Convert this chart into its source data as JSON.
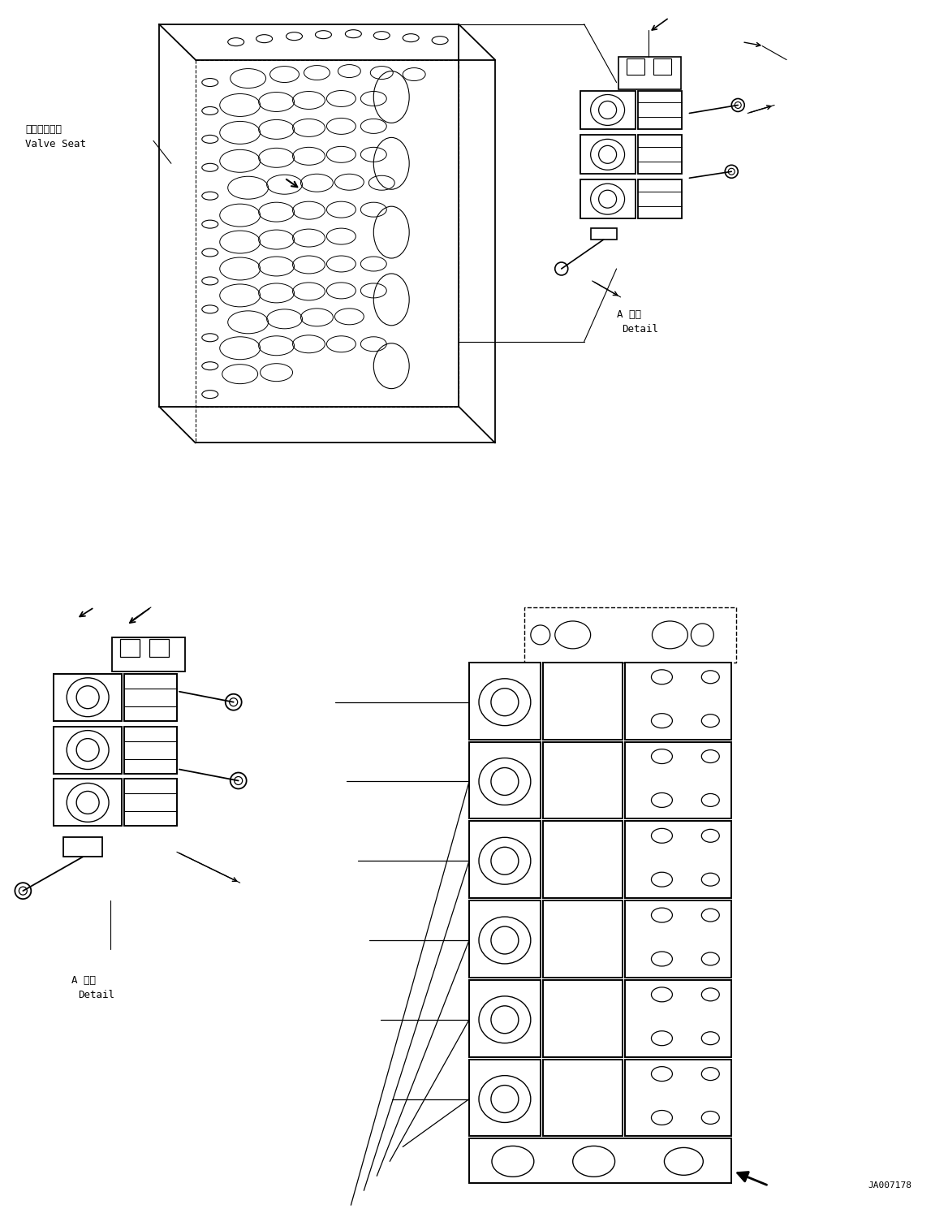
{
  "background_color": "#ffffff",
  "line_color": "#000000",
  "fig_width": 11.68,
  "fig_height": 14.89,
  "dpi": 100,
  "label_valve_seat_jp": "バルブシート",
  "label_valve_seat_en": "Valve Seat",
  "label_detail_jp": "A 詳細",
  "label_detail_en": "Detail",
  "label_drawing_number": "JA007178",
  "font_size_labels": 9,
  "font_size_number": 8
}
